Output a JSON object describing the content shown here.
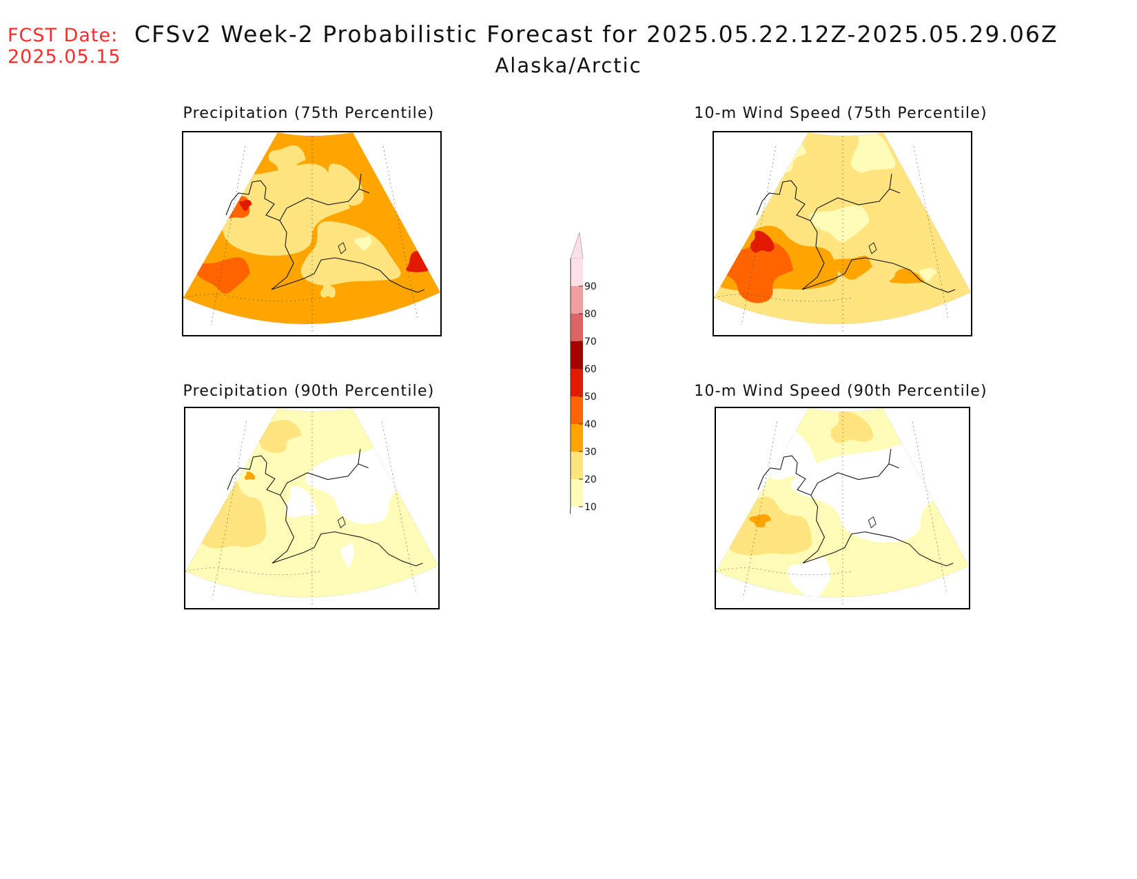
{
  "header": {
    "fcst_label": "FCST Date:",
    "fcst_date": "2025.05.15",
    "title": "CFSv2 Week-2 Probabilistic Forecast for 2025.05.22.12Z-2025.05.29.06Z",
    "subtitle": "Alaska/Arctic"
  },
  "panels": [
    {
      "id": "precip75",
      "title": "Precipitation (75th Percentile)",
      "scheme": "high"
    },
    {
      "id": "wind75",
      "title": "10-m Wind Speed (75th Percentile)",
      "scheme": "mid"
    },
    {
      "id": "precip90",
      "title": "Precipitation (90th Percentile)",
      "scheme": "low"
    },
    {
      "id": "wind90",
      "title": "10-m Wind Speed (90th Percentile)",
      "scheme": "lowest"
    }
  ],
  "legend": {
    "levels": [
      "10",
      "20",
      "30",
      "40",
      "50",
      "60",
      "70",
      "80",
      "90"
    ],
    "colors": [
      "#fffcb8",
      "#ffe480",
      "#ffa500",
      "#ff6400",
      "#e11a00",
      "#a50000",
      "#dc6464",
      "#f0a0a0",
      "#ffe0e6"
    ]
  }
}
